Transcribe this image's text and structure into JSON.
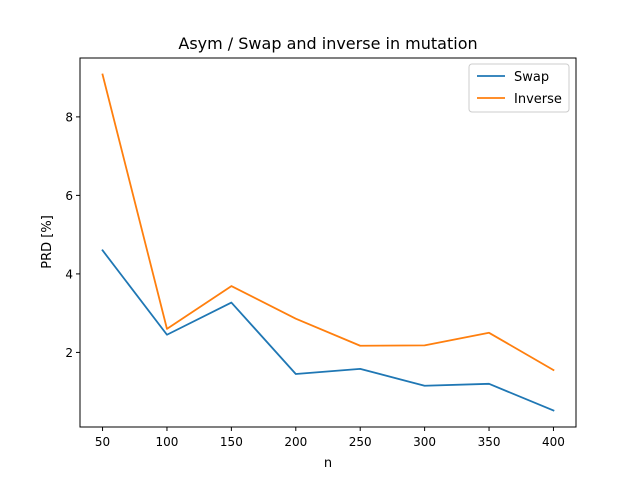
{
  "chart_data": {
    "type": "line",
    "title": "Asym / Swap and inverse in mutation",
    "xlabel": "n",
    "ylabel": "PRD [%]",
    "x": [
      50,
      100,
      150,
      200,
      250,
      300,
      350,
      400
    ],
    "xticks": [
      50,
      100,
      150,
      200,
      250,
      300,
      350,
      400
    ],
    "yticks": [
      2,
      4,
      6,
      8
    ],
    "xlim": [
      32.5,
      417.5
    ],
    "ylim": [
      0.1,
      9.5
    ],
    "grid": false,
    "legend_position": "top-right",
    "series": [
      {
        "name": "Swap",
        "color": "#1f77b4",
        "values": [
          4.6,
          2.45,
          3.27,
          1.45,
          1.58,
          1.15,
          1.2,
          0.52
        ]
      },
      {
        "name": "Inverse",
        "color": "#ff7f0e",
        "values": [
          9.08,
          2.6,
          3.69,
          2.86,
          2.17,
          2.18,
          2.5,
          1.55
        ]
      }
    ]
  }
}
